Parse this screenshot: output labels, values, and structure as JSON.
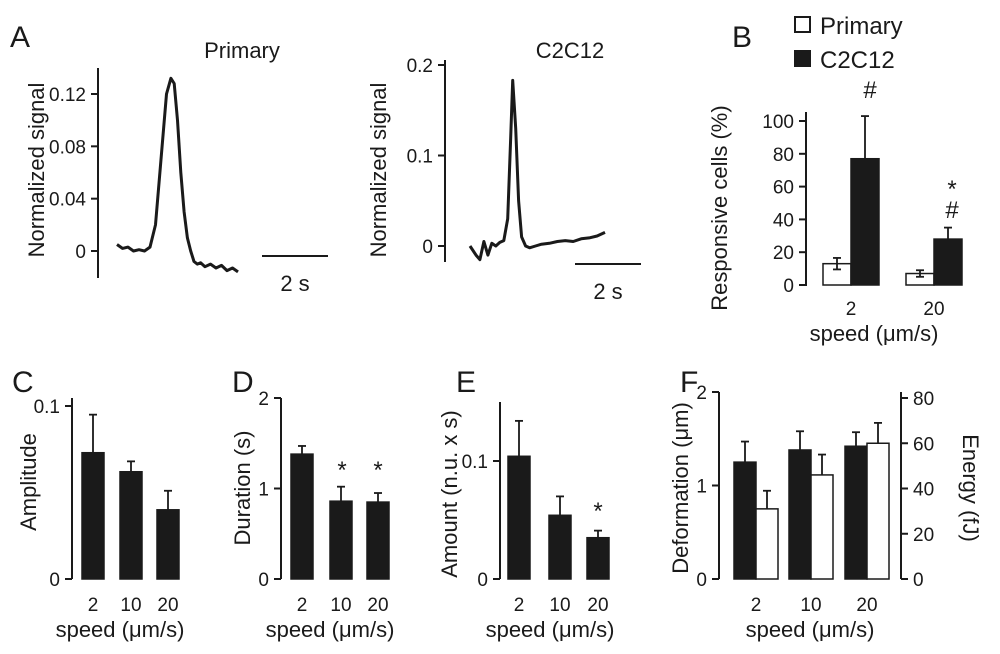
{
  "panel_labels": {
    "A": "A",
    "B": "B",
    "C": "C",
    "D": "D",
    "E": "E",
    "F": "F"
  },
  "chart_data": [
    {
      "id": "A1",
      "type": "line",
      "title": "Primary",
      "ylabel": "Normalized  signal",
      "ylim": [
        -0.01,
        0.14
      ],
      "yticks": [
        0,
        0.04,
        0.08,
        0.12
      ],
      "ytick_labels": [
        "0",
        "0.04",
        "0.08",
        "0.12"
      ],
      "scalebar": "2 s",
      "x": [
        0,
        0.25,
        0.5,
        0.75,
        1.0,
        1.25,
        1.5,
        1.75,
        2.0,
        2.25,
        2.45,
        2.6,
        2.75,
        2.9,
        3.05,
        3.2,
        3.35,
        3.5,
        3.65,
        3.8,
        4.0,
        4.25,
        4.5,
        4.75,
        5.0,
        5.25,
        5.5
      ],
      "y": [
        0.005,
        0.002,
        0.003,
        0.0,
        0.001,
        0.0,
        0.003,
        0.02,
        0.07,
        0.12,
        0.132,
        0.128,
        0.1,
        0.06,
        0.03,
        0.01,
        0.0,
        -0.008,
        -0.01,
        -0.009,
        -0.012,
        -0.01,
        -0.013,
        -0.011,
        -0.015,
        -0.013,
        -0.016
      ]
    },
    {
      "id": "A2",
      "type": "line",
      "title": "C2C12",
      "ylabel": "Normalized  signal",
      "ylim": [
        -0.02,
        0.21
      ],
      "yticks": [
        0,
        0.1,
        0.2
      ],
      "ytick_labels": [
        "0",
        "0.1",
        "0.2"
      ],
      "scalebar": "2 s",
      "x": [
        0,
        0.3,
        0.5,
        0.7,
        0.9,
        1.1,
        1.3,
        1.5,
        1.7,
        1.9,
        2.05,
        2.15,
        2.3,
        2.45,
        2.6,
        2.8,
        3.0,
        3.3,
        3.6,
        4.0,
        4.4,
        4.8,
        5.2,
        5.6,
        6.0,
        6.4,
        6.8
      ],
      "y": [
        0.0,
        -0.01,
        -0.015,
        0.005,
        -0.01,
        0.003,
        0.0,
        0.004,
        0.006,
        0.03,
        0.12,
        0.183,
        0.13,
        0.05,
        0.01,
        0.0,
        -0.002,
        0.0,
        0.002,
        0.003,
        0.005,
        0.006,
        0.005,
        0.008,
        0.009,
        0.011,
        0.015
      ]
    },
    {
      "id": "B",
      "type": "bar",
      "ylabel": "Responsive cells (%)",
      "xlabel": "speed (μm/s)",
      "categories": [
        "2",
        "20"
      ],
      "ylim": [
        0,
        110
      ],
      "yticks": [
        0,
        20,
        40,
        60,
        80,
        100
      ],
      "series": [
        {
          "name": "Primary",
          "filled": false,
          "values": [
            13,
            7
          ],
          "errors": [
            3.5,
            2
          ]
        },
        {
          "name": "C2C12",
          "filled": true,
          "values": [
            77,
            28
          ],
          "errors": [
            26,
            7
          ]
        }
      ],
      "annotations": [
        "#",
        "*",
        "#"
      ]
    },
    {
      "id": "C",
      "type": "bar",
      "ylabel": "Amplitude",
      "xlabel": "speed (μm/s)",
      "categories": [
        "2",
        "10",
        "20"
      ],
      "ylim": [
        0,
        0.11
      ],
      "yticks": [
        0,
        0.1
      ],
      "ytick_labels": [
        "0",
        "0.1"
      ],
      "values": [
        0.073,
        0.062,
        0.04
      ],
      "errors": [
        0.022,
        0.006,
        0.011
      ]
    },
    {
      "id": "D",
      "type": "bar",
      "ylabel": "Duration (s)",
      "xlabel": "speed (μm/s)",
      "categories": [
        "2",
        "10",
        "20"
      ],
      "ylim": [
        0,
        2
      ],
      "yticks": [
        0,
        1,
        2
      ],
      "values": [
        1.38,
        0.86,
        0.85
      ],
      "errors": [
        0.09,
        0.16,
        0.1
      ],
      "annotations": [
        "*",
        "*"
      ]
    },
    {
      "id": "E",
      "type": "bar",
      "ylabel": "Amount (n.u. x s)",
      "xlabel": "speed (μm/s)",
      "categories": [
        "2",
        "10",
        "20"
      ],
      "ylim": [
        0,
        0.15
      ],
      "yticks": [
        0,
        0.1
      ],
      "ytick_labels": [
        "0",
        "0.1"
      ],
      "values": [
        0.104,
        0.054,
        0.035
      ],
      "errors": [
        0.03,
        0.016,
        0.006
      ],
      "annotations": [
        "*"
      ]
    },
    {
      "id": "F",
      "type": "bar",
      "ylabel": "Deformation (μm)",
      "y2label": "Energy (fJ)",
      "xlabel": "speed (μm/s)",
      "categories": [
        "2",
        "10",
        "20"
      ],
      "ylim": [
        0,
        2
      ],
      "yticks": [
        0,
        1,
        2
      ],
      "y2lim": [
        0,
        80
      ],
      "y2ticks": [
        0,
        20,
        40,
        60,
        80
      ],
      "series": [
        {
          "name": "Deformation",
          "filled": true,
          "values": [
            1.25,
            1.38,
            1.42
          ],
          "errors": [
            0.22,
            0.2,
            0.15
          ]
        },
        {
          "name": "Energy",
          "filled": false,
          "values": [
            31,
            46,
            60
          ],
          "errors": [
            8,
            9,
            9
          ]
        }
      ]
    }
  ]
}
